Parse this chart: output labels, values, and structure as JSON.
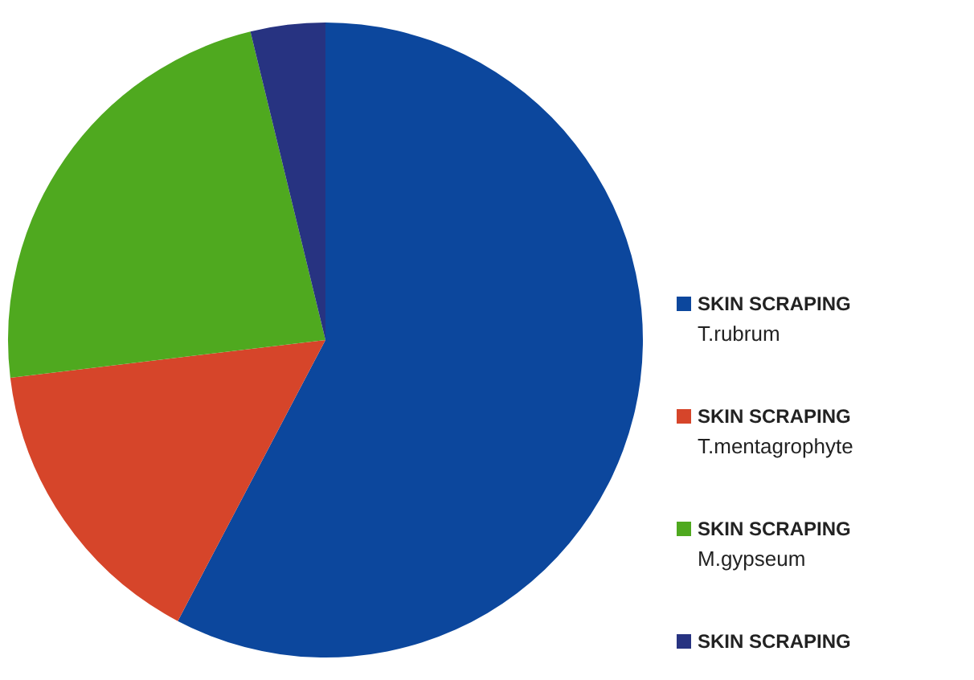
{
  "chart_data": {
    "type": "pie",
    "categories": [
      "SKIN SCRAPING T.rubrum",
      "SKIN SCRAPING T.mentagrophyte",
      "SKIN SCRAPING M.gypseum",
      "SKIN SCRAPING"
    ],
    "values": [
      57.7,
      15.4,
      23.1,
      3.8
    ],
    "colors": [
      "#0c479d",
      "#d6452a",
      "#4fa91f",
      "#273381"
    ],
    "legend": "right"
  }
}
